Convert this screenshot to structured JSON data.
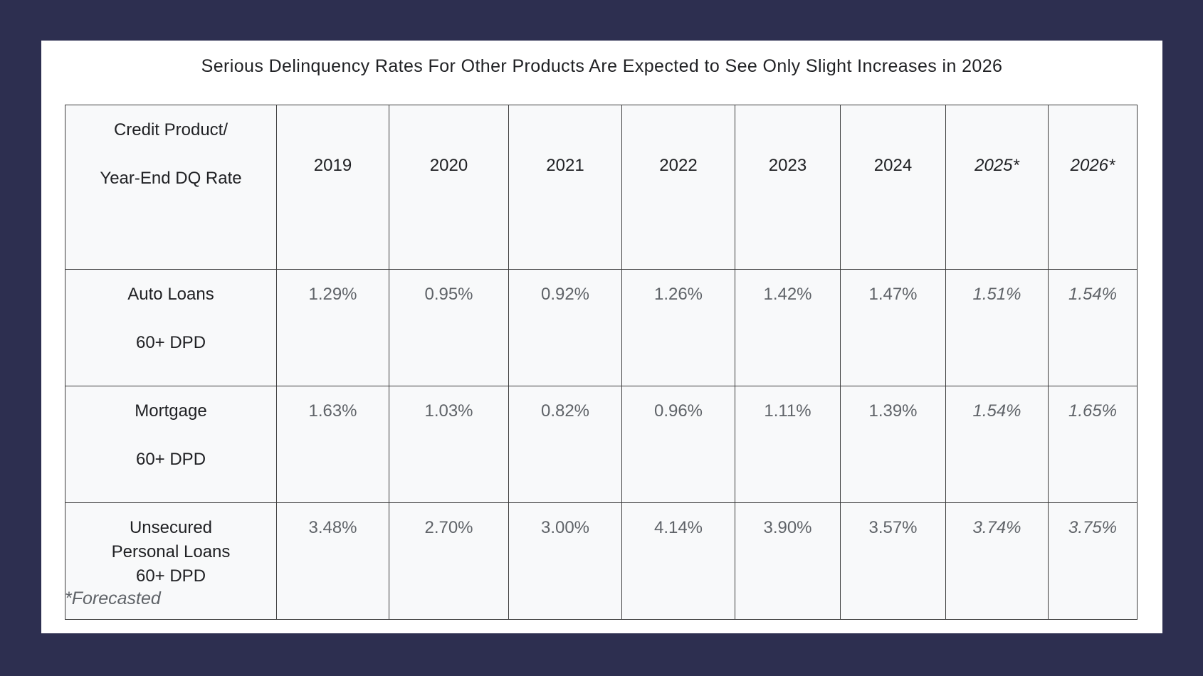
{
  "title": "Serious Delinquency Rates For Other Products Are Expected to See Only Slight Increases in 2026",
  "header": {
    "corner_line1": "Credit Product/",
    "corner_line2": "Year-End DQ Rate",
    "years": [
      "2019",
      "2020",
      "2021",
      "2022",
      "2023",
      "2024",
      "2025*",
      "2026*"
    ]
  },
  "rows": [
    {
      "line1": "Auto Loans",
      "line2": "",
      "line3": "60+ DPD",
      "values": [
        "1.29%",
        "0.95%",
        "0.92%",
        "1.26%",
        "1.42%",
        "1.47%",
        "1.51%",
        "1.54%"
      ]
    },
    {
      "line1": "Mortgage",
      "line2": "",
      "line3": "60+ DPD",
      "values": [
        "1.63%",
        "1.03%",
        "0.82%",
        "0.96%",
        "1.11%",
        "1.39%",
        "1.54%",
        "1.65%"
      ]
    },
    {
      "line1": "Unsecured",
      "line2": "Personal Loans",
      "line3": "60+ DPD",
      "values": [
        "3.48%",
        "2.70%",
        "3.00%",
        "4.14%",
        "3.90%",
        "3.57%",
        "3.74%",
        "3.75%"
      ]
    }
  ],
  "footnote": "*Forecasted",
  "chart_data": {
    "type": "table",
    "title": "Serious Delinquency Rates For Other Products Are Expected to See Only Slight Increases in 2026",
    "columns": [
      "Credit Product/ Year-End DQ Rate",
      "2019",
      "2020",
      "2021",
      "2022",
      "2023",
      "2024",
      "2025*",
      "2026*"
    ],
    "forecast_columns": [
      "2025*",
      "2026*"
    ],
    "rows": [
      {
        "product": "Auto Loans 60+ DPD",
        "values": [
          1.29,
          0.95,
          0.92,
          1.26,
          1.42,
          1.47,
          1.51,
          1.54
        ]
      },
      {
        "product": "Mortgage 60+ DPD",
        "values": [
          1.63,
          1.03,
          0.82,
          0.96,
          1.11,
          1.39,
          1.54,
          1.65
        ]
      },
      {
        "product": "Unsecured Personal Loans 60+ DPD",
        "values": [
          3.48,
          2.7,
          3.0,
          4.14,
          3.9,
          3.57,
          3.74,
          3.75
        ]
      }
    ],
    "unit": "%"
  },
  "colors": {
    "background": "#2d2f50",
    "card": "#ffffff",
    "table_fill": "#f8f9fa",
    "border": "#3c3c3c"
  }
}
